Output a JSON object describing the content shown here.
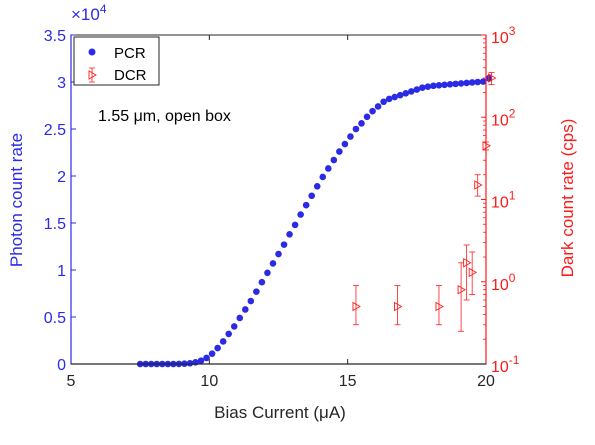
{
  "chart_data": {
    "type": "scatter",
    "xlabel": "Bias Current (μA)",
    "ylabel_left": "Photon count rate",
    "ylabel_right": "Dark count rate (cps)",
    "exponent_label": "×10",
    "exponent_power": "4",
    "annotation": "1.55 μm, open box",
    "xlim": [
      5,
      20
    ],
    "ylim_left": [
      0,
      35000
    ],
    "ylim_right_log10": [
      -1,
      3
    ],
    "x_ticks": [
      "5",
      "10",
      "15",
      "20"
    ],
    "y_left_ticks": [
      "0",
      "0.5",
      "1",
      "1.5",
      "2",
      "2.5",
      "3",
      "3.5"
    ],
    "y_right_ticks": [
      {
        "base": "10",
        "power": "-1"
      },
      {
        "base": "10",
        "power": "0"
      },
      {
        "base": "10",
        "power": "1"
      },
      {
        "base": "10",
        "power": "2"
      },
      {
        "base": "10",
        "power": "3"
      }
    ],
    "legend_position": "top-left",
    "series": [
      {
        "name": "PCR",
        "axis": "left",
        "color": "#2b2be6",
        "marker": "filled-circle",
        "points": [
          [
            7.5,
            0
          ],
          [
            7.7,
            0
          ],
          [
            7.9,
            0
          ],
          [
            8.1,
            0
          ],
          [
            8.3,
            0
          ],
          [
            8.5,
            0
          ],
          [
            8.7,
            0
          ],
          [
            8.9,
            10
          ],
          [
            9.1,
            30
          ],
          [
            9.3,
            80
          ],
          [
            9.5,
            180
          ],
          [
            9.7,
            350
          ],
          [
            9.9,
            650
          ],
          [
            10.1,
            1100
          ],
          [
            10.3,
            1700
          ],
          [
            10.5,
            2400
          ],
          [
            10.7,
            3200
          ],
          [
            10.9,
            4000
          ],
          [
            11.1,
            4900
          ],
          [
            11.3,
            5800
          ],
          [
            11.5,
            6700
          ],
          [
            11.7,
            7700
          ],
          [
            11.9,
            8700
          ],
          [
            12.1,
            9700
          ],
          [
            12.3,
            10700
          ],
          [
            12.5,
            11700
          ],
          [
            12.7,
            12700
          ],
          [
            12.9,
            13800
          ],
          [
            13.1,
            14800
          ],
          [
            13.3,
            15900
          ],
          [
            13.5,
            16900
          ],
          [
            13.7,
            17900
          ],
          [
            13.9,
            18900
          ],
          [
            14.1,
            19900
          ],
          [
            14.3,
            20800
          ],
          [
            14.5,
            21700
          ],
          [
            14.7,
            22600
          ],
          [
            14.9,
            23400
          ],
          [
            15.1,
            24200
          ],
          [
            15.3,
            25000
          ],
          [
            15.5,
            25600
          ],
          [
            15.7,
            26300
          ],
          [
            15.9,
            26900
          ],
          [
            16.1,
            27400
          ],
          [
            16.3,
            27900
          ],
          [
            16.5,
            28200
          ],
          [
            16.7,
            28400
          ],
          [
            16.9,
            28600
          ],
          [
            17.1,
            28800
          ],
          [
            17.3,
            29000
          ],
          [
            17.5,
            29200
          ],
          [
            17.7,
            29400
          ],
          [
            17.9,
            29500
          ],
          [
            18.1,
            29600
          ],
          [
            18.3,
            29650
          ],
          [
            18.5,
            29700
          ],
          [
            18.7,
            29750
          ],
          [
            18.9,
            29800
          ],
          [
            19.1,
            29850
          ],
          [
            19.3,
            29900
          ],
          [
            19.5,
            29950
          ],
          [
            19.7,
            30000
          ],
          [
            19.9,
            30050
          ],
          [
            20.1,
            30400
          ]
        ]
      },
      {
        "name": "DCR",
        "axis": "right",
        "color": "#ff1a1a",
        "marker": "open-triangle-right",
        "points": [
          {
            "x": 15.3,
            "y": 0.5,
            "lo": 0.3,
            "hi": 0.9
          },
          {
            "x": 16.8,
            "y": 0.5,
            "lo": 0.3,
            "hi": 0.9
          },
          {
            "x": 18.3,
            "y": 0.5,
            "lo": 0.3,
            "hi": 0.9
          },
          {
            "x": 19.1,
            "y": 0.8,
            "lo": 0.25,
            "hi": 1.7
          },
          {
            "x": 19.3,
            "y": 1.7,
            "lo": 0.6,
            "hi": 2.8
          },
          {
            "x": 19.5,
            "y": 1.3,
            "lo": 0.7,
            "hi": 2.3
          },
          {
            "x": 19.7,
            "y": 15,
            "lo": 11,
            "hi": 20
          },
          {
            "x": 20.0,
            "y": 45,
            "lo": 40,
            "hi": 50
          },
          {
            "x": 20.2,
            "y": 300,
            "lo": 250,
            "hi": 350
          }
        ]
      }
    ]
  }
}
